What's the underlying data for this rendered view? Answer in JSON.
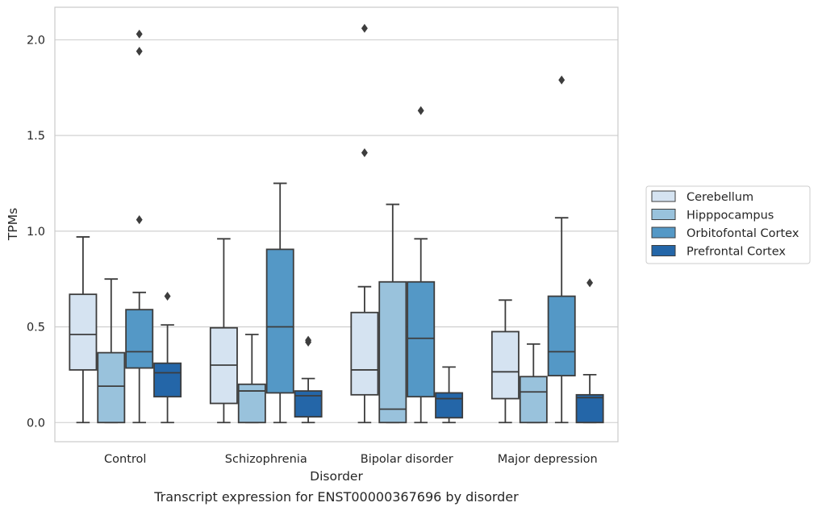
{
  "chart_data": {
    "type": "box",
    "xlabel": "Disorder",
    "ylabel": "TPMs",
    "caption": "Transcript expression for ENST00000367696 by disorder",
    "ylim": [
      -0.1,
      2.17
    ],
    "yticks": [
      0.0,
      0.5,
      1.0,
      1.5,
      2.0
    ],
    "ytick_labels": [
      "0.0",
      "0.5",
      "1.0",
      "1.5",
      "2.0"
    ],
    "grid": "horizontal",
    "legend_position": "right",
    "categories": [
      "Control",
      "Schizophrenia",
      "Bipolar disorder",
      "Major depression"
    ],
    "series": [
      {
        "name": "Cerebellum",
        "color": "#d5e3f1",
        "boxes": [
          {
            "whisker_low": 0.0,
            "q1": 0.275,
            "median": 0.46,
            "q3": 0.67,
            "whisker_high": 0.97,
            "outliers": []
          },
          {
            "whisker_low": 0.0,
            "q1": 0.1,
            "median": 0.3,
            "q3": 0.495,
            "whisker_high": 0.96,
            "outliers": []
          },
          {
            "whisker_low": 0.0,
            "q1": 0.145,
            "median": 0.275,
            "q3": 0.575,
            "whisker_high": 0.71,
            "outliers": [
              1.41,
              2.06
            ]
          },
          {
            "whisker_low": 0.0,
            "q1": 0.125,
            "median": 0.265,
            "q3": 0.475,
            "whisker_high": 0.64,
            "outliers": []
          }
        ]
      },
      {
        "name": "Hipppocampus",
        "color": "#99c2dc",
        "boxes": [
          {
            "whisker_low": 0.0,
            "q1": 0.0,
            "median": 0.19,
            "q3": 0.365,
            "whisker_high": 0.75,
            "outliers": []
          },
          {
            "whisker_low": 0.0,
            "q1": 0.0,
            "median": 0.165,
            "q3": 0.2,
            "whisker_high": 0.46,
            "outliers": []
          },
          {
            "whisker_low": 0.0,
            "q1": 0.0,
            "median": 0.07,
            "q3": 0.735,
            "whisker_high": 1.14,
            "outliers": []
          },
          {
            "whisker_low": 0.0,
            "q1": 0.0,
            "median": 0.16,
            "q3": 0.24,
            "whisker_high": 0.41,
            "outliers": []
          }
        ]
      },
      {
        "name": "Orbitofontal Cortex",
        "color": "#5498c6",
        "boxes": [
          {
            "whisker_low": 0.0,
            "q1": 0.285,
            "median": 0.37,
            "q3": 0.59,
            "whisker_high": 0.68,
            "outliers": [
              1.06,
              1.94,
              2.03
            ]
          },
          {
            "whisker_low": 0.0,
            "q1": 0.155,
            "median": 0.5,
            "q3": 0.905,
            "whisker_high": 1.25,
            "outliers": []
          },
          {
            "whisker_low": 0.0,
            "q1": 0.135,
            "median": 0.44,
            "q3": 0.735,
            "whisker_high": 0.96,
            "outliers": [
              1.63
            ]
          },
          {
            "whisker_low": 0.0,
            "q1": 0.245,
            "median": 0.37,
            "q3": 0.66,
            "whisker_high": 1.07,
            "outliers": [
              1.79
            ]
          }
        ]
      },
      {
        "name": "Prefrontal Cortex",
        "color": "#2466a8",
        "boxes": [
          {
            "whisker_low": 0.0,
            "q1": 0.135,
            "median": 0.26,
            "q3": 0.31,
            "whisker_high": 0.51,
            "outliers": [
              0.66
            ]
          },
          {
            "whisker_low": 0.0,
            "q1": 0.03,
            "median": 0.14,
            "q3": 0.165,
            "whisker_high": 0.23,
            "outliers": [
              0.42,
              0.43
            ]
          },
          {
            "whisker_low": 0.0,
            "q1": 0.025,
            "median": 0.125,
            "q3": 0.155,
            "whisker_high": 0.29,
            "outliers": []
          },
          {
            "whisker_low": 0.0,
            "q1": 0.0,
            "median": 0.13,
            "q3": 0.145,
            "whisker_high": 0.25,
            "outliers": [
              0.73
            ]
          }
        ]
      }
    ]
  }
}
